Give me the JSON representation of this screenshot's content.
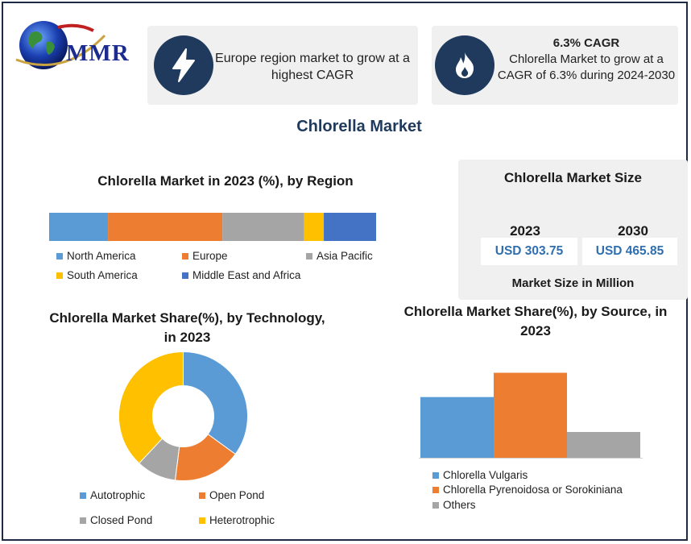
{
  "logo": {
    "text": "MMR"
  },
  "cards": {
    "region": {
      "icon": "lightning-bolt-icon",
      "text": "Europe  region market  to grow at a highest  CAGR"
    },
    "cagr": {
      "icon": "flame-icon",
      "title": "6.3% CAGR",
      "text": "Chlorella Market to grow at a CAGR of 6.3% during 2024-2030"
    }
  },
  "page_title": "Chlorella Market",
  "market_size": {
    "title": "Chlorella Market Size",
    "years": [
      "2023",
      "2030"
    ],
    "values": [
      "USD 303.75",
      "USD 465.85"
    ],
    "caption": "Market Size in Million"
  },
  "colors": {
    "north_america": "#5b9bd5",
    "europe": "#ed7d31",
    "asia_pacific": "#a5a5a5",
    "south_america": "#ffc000",
    "mea": "#4472c4",
    "icon_circle": "#1f3a5c",
    "title_blue": "#1f3a5c",
    "value_blue": "#2f6fb0"
  },
  "chart_data": [
    {
      "type": "bar",
      "orientation": "horizontal-stacked",
      "title": "Chlorella Market in 2023 (%), by Region",
      "series": [
        {
          "name": "North America",
          "value": 18,
          "color": "#5b9bd5"
        },
        {
          "name": "Europe",
          "value": 35,
          "color": "#ed7d31"
        },
        {
          "name": "Asia Pacific",
          "value": 25,
          "color": "#a5a5a5"
        },
        {
          "name": "South America",
          "value": 6,
          "color": "#ffc000"
        },
        {
          "name": "Middle East and Africa",
          "value": 16,
          "color": "#4472c4"
        }
      ],
      "legend": "bottom"
    },
    {
      "type": "pie",
      "style": "donut",
      "title": "Chlorella Market Share(%), by Technology, in 2023",
      "slices": [
        {
          "name": "Autotrophic",
          "value": 35,
          "color": "#5b9bd5"
        },
        {
          "name": "Open Pond",
          "value": 17,
          "color": "#ed7d31"
        },
        {
          "name": "Closed Pond",
          "value": 10,
          "color": "#a5a5a5"
        },
        {
          "name": "Heterotrophic",
          "value": 38,
          "color": "#ffc000"
        }
      ],
      "legend": "bottom"
    },
    {
      "type": "bar",
      "title": "Chlorella Market Share(%), by Source, in 2023",
      "categories": [
        "Chlorella Vulgaris",
        "Chlorella Pyrenoidosa or Sorokiniana",
        "Others"
      ],
      "values": [
        40,
        56,
        17
      ],
      "colors": [
        "#5b9bd5",
        "#ed7d31",
        "#a5a5a5"
      ],
      "ylim": [
        0,
        60
      ],
      "grid": false,
      "legend": "bottom"
    }
  ]
}
